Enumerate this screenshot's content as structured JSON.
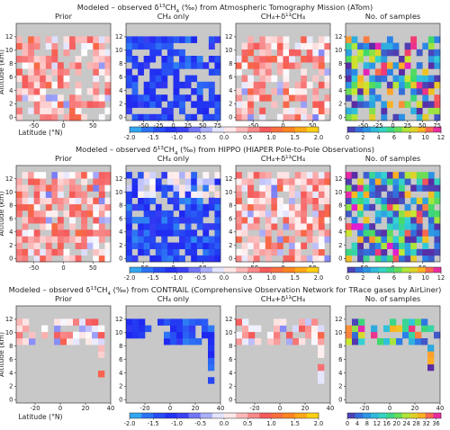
{
  "chart_data": {
    "type": "heatmap",
    "panel_titles": [
      "Prior",
      "CH₄ only",
      "CH₄+δ¹³CH₄",
      "No. of samples"
    ],
    "ylabel": "Altitude (km)",
    "xlabel": "Latitude (°N)",
    "yticks": [
      "0",
      "2",
      "4",
      "6",
      "8",
      "10",
      "12"
    ],
    "missing_color": "#c8c8c8",
    "rows": [
      {
        "title": "Modeled – observed δ¹³CH₄ (‰) from Atmospheric Tomography Mission (ATom)",
        "lat_range": [
          -80,
          80
        ],
        "xticks": [
          -50,
          0,
          50
        ],
        "xticks_fine": [
          -50,
          -25,
          0,
          25,
          50,
          75
        ],
        "diff_colorbar_ticks": [
          "-2.0",
          "-1.5",
          "-1.0",
          "-0.5",
          "0.0",
          "0.5",
          "1.0",
          "1.5",
          "2.0"
        ],
        "count_colorbar_ticks": [
          "0",
          "2",
          "4",
          "6",
          "8",
          "10",
          "12"
        ],
        "count_max": 12
      },
      {
        "title": "Modeled – observed δ¹³CH₄ (‰) from HIPPO (HIAPER Pole-to-Pole Observations)",
        "lat_range": [
          -80,
          80
        ],
        "xticks": [
          -50,
          0,
          50
        ],
        "diff_colorbar_ticks": [
          "-2.0",
          "-1.5",
          "-1.0",
          "-0.5",
          "0.0",
          "0.5",
          "1.0",
          "1.5",
          "2.0"
        ],
        "count_colorbar_ticks": [
          "0",
          "2",
          "4",
          "6",
          "8",
          "10",
          "12"
        ],
        "count_max": 12
      },
      {
        "title": "Modeled – observed δ¹³CH₄ (‰) from CONTRAIL (Comprehensive Observation Network for TRace gases by AirLiner)",
        "lat_range": [
          -35,
          40
        ],
        "xticks": [
          -20,
          0,
          20,
          40
        ],
        "diff_colorbar_ticks": [
          "-2.0",
          "-1.5",
          "-1.0",
          "-0.5",
          "0.0",
          "0.5",
          "1.0",
          "1.5",
          "2.0"
        ],
        "count_colorbar_ticks": [
          "0",
          "4",
          "8",
          "12",
          "16",
          "20",
          "24",
          "28",
          "32",
          "36"
        ],
        "count_max": 38
      }
    ]
  }
}
